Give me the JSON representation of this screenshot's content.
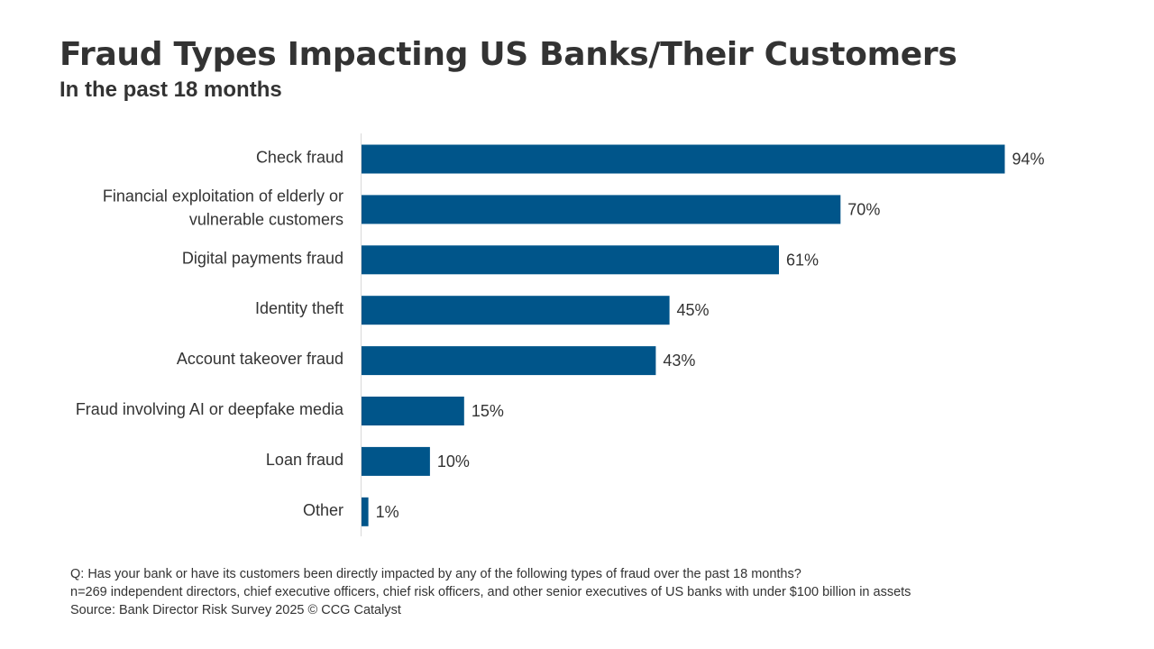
{
  "chart_data": {
    "type": "bar",
    "orientation": "horizontal",
    "title": "Fraud Types Impacting US Banks/Their Customers",
    "subtitle": "In the past 18 months",
    "categories": [
      "Check fraud",
      "Financial exploitation of elderly or vulnerable customers",
      "Digital payments fraud",
      "Identity theft",
      "Account takeover fraud",
      "Fraud involving AI or deepfake media",
      "Loan fraud",
      "Other"
    ],
    "category_label_lines": [
      [
        "Check fraud"
      ],
      [
        "Financial exploitation of elderly or",
        "vulnerable customers"
      ],
      [
        "Digital payments fraud"
      ],
      [
        "Identity theft"
      ],
      [
        "Account takeover fraud"
      ],
      [
        "Fraud involving AI or deepfake media"
      ],
      [
        "Loan fraud"
      ],
      [
        "Other"
      ]
    ],
    "values": [
      94,
      70,
      61,
      45,
      43,
      15,
      10,
      1
    ],
    "value_labels": [
      "94%",
      "70%",
      "61%",
      "45%",
      "43%",
      "15%",
      "10%",
      "1%"
    ],
    "unit": "%",
    "xlim": [
      0,
      100
    ],
    "xlabel": "",
    "ylabel": "",
    "grid": false,
    "legend": "none",
    "bar_color": "#00558a",
    "axis_color": "#d9d9d9"
  },
  "footnotes": {
    "question": "Q: Has your bank or have its customers been directly impacted by any of the following types of fraud over the past 18 months?",
    "sample": "n=269 independent directors, chief executive officers, chief risk officers, and other senior executives of US banks with under $100 billion in assets",
    "source": "Source: Bank Director Risk Survey 2025 © CCG Catalyst"
  }
}
